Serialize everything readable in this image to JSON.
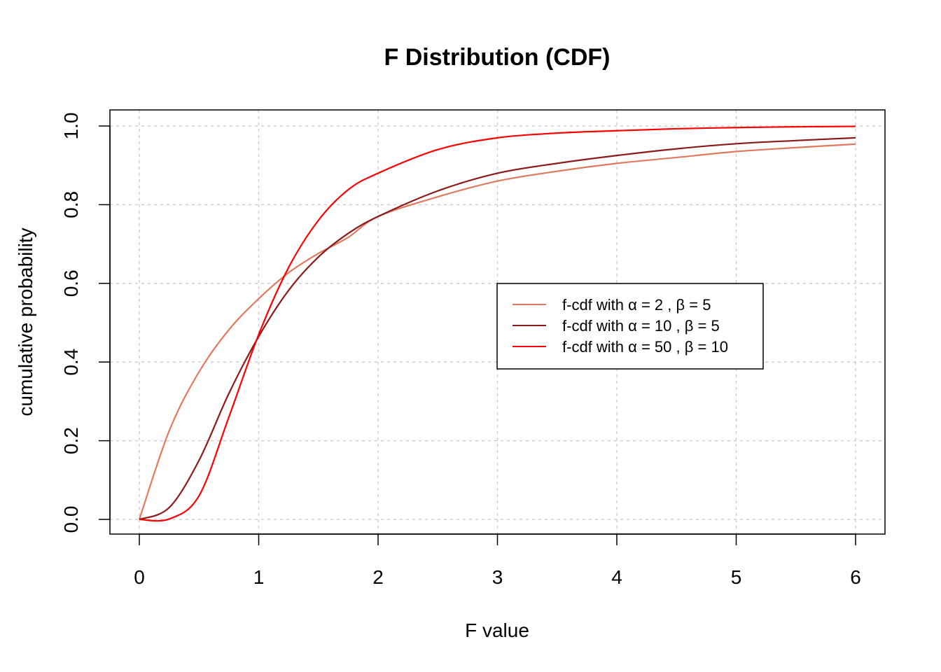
{
  "chart_data": {
    "type": "line",
    "title": "F Distribution (CDF)",
    "xlabel": "F value",
    "ylabel": "cumulative probability",
    "xlim": [
      0,
      6
    ],
    "ylim": [
      0,
      1
    ],
    "x_ticks": [
      "0",
      "1",
      "2",
      "3",
      "4",
      "5",
      "6"
    ],
    "y_ticks": [
      "0.0",
      "0.2",
      "0.4",
      "0.6",
      "0.8",
      "1.0"
    ],
    "grid": true,
    "legend_position": "right-center",
    "x": [
      0,
      0.25,
      0.5,
      0.75,
      1,
      1.25,
      1.5,
      1.75,
      2,
      2.5,
      3,
      3.5,
      4,
      4.5,
      5,
      5.5,
      6
    ],
    "series": [
      {
        "name": "f-cdf with α = 2 , β = 5",
        "color": "#E07A5F",
        "values": [
          0,
          0.225,
          0.375,
          0.482,
          0.561,
          0.627,
          0.676,
          0.717,
          0.77,
          0.82,
          0.86,
          0.885,
          0.905,
          0.92,
          0.935,
          0.945,
          0.954
        ]
      },
      {
        "name": "f-cdf with α = 10 , β = 5",
        "color": "#8B1A1A",
        "values": [
          0,
          0.03,
          0.15,
          0.32,
          0.465,
          0.582,
          0.667,
          0.727,
          0.77,
          0.835,
          0.88,
          0.905,
          0.925,
          0.942,
          0.955,
          0.963,
          0.97
        ]
      },
      {
        "name": "f-cdf with α = 50 , β = 10",
        "color": "#FF0000",
        "values": [
          0,
          0.001,
          0.06,
          0.26,
          0.47,
          0.64,
          0.76,
          0.838,
          0.88,
          0.94,
          0.97,
          0.982,
          0.988,
          0.993,
          0.996,
          0.998,
          0.999
        ]
      }
    ]
  }
}
